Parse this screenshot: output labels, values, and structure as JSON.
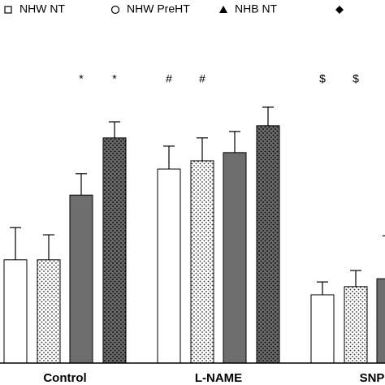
{
  "chart_data": {
    "type": "bar",
    "categories": [
      "Control",
      "L-NAME",
      "SNP"
    ],
    "series": [
      {
        "name": "NHW NT",
        "color": "#ffffff",
        "pattern": "none",
        "marker": "square",
        "values": [
          28.9,
          54.3,
          19.1
        ],
        "errors": [
          9,
          6.4,
          3.6
        ]
      },
      {
        "name": "NHW PreHT",
        "color": "#ffffff",
        "pattern": "dots",
        "marker": "circle",
        "values": [
          28.9,
          56.6,
          21.4
        ],
        "errors": [
          7,
          6.4,
          4.5
        ]
      },
      {
        "name": "NHB NT",
        "color": "#6e6e6e",
        "pattern": "none",
        "marker": "triangle",
        "values": [
          47,
          58.9,
          23.6
        ],
        "errors": [
          6,
          5.9,
          12
        ]
      },
      {
        "name": null,
        "color": "#6a6a6a",
        "pattern": "dots",
        "marker": "diamond",
        "values": [
          63,
          66.4,
          null
        ],
        "errors": [
          4.5,
          5.2,
          null
        ]
      }
    ],
    "annotations": [
      {
        "text": "*",
        "category": 0,
        "series": 2
      },
      {
        "text": "*",
        "category": 0,
        "series": 3
      },
      {
        "text": "#",
        "category": 1,
        "series": 0
      },
      {
        "text": "#",
        "category": 1,
        "series": 1
      },
      {
        "text": "$",
        "category": 2,
        "series": 0
      },
      {
        "text": "$",
        "category": 2,
        "series": 1
      },
      {
        "text": "*",
        "category": 2,
        "series": 2
      }
    ],
    "ylim": [
      0,
      100
    ]
  }
}
